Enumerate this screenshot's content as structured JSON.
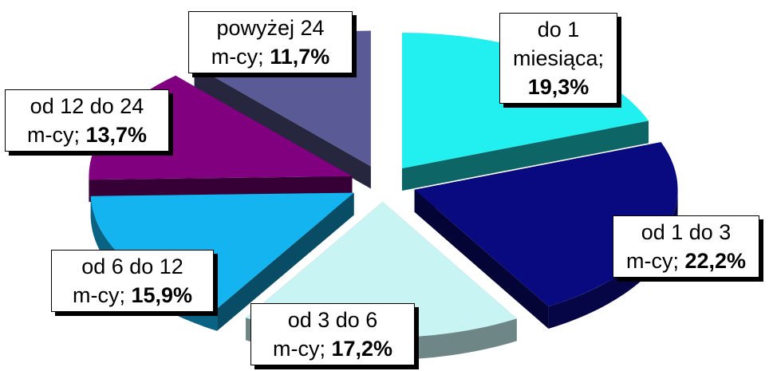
{
  "chart_data": {
    "type": "pie",
    "style": "exploded 3d pie",
    "categories": [
      "do 1 miesiąca",
      "od 1 do 3 m-cy",
      "od 3 do 6 m-cy",
      "od 6 do 12 m-cy",
      "od 12 do 24 m-cy",
      "powyżej 24 m-cy"
    ],
    "values": [
      19.3,
      22.2,
      17.2,
      15.9,
      13.7,
      11.7
    ],
    "unit": "%",
    "slices": [
      {
        "key": "s1",
        "lines": [
          "do 1",
          "miesiąca;"
        ],
        "value_text": "19,3%",
        "value": 19.3,
        "color": "#22f0f0"
      },
      {
        "key": "s2",
        "lines": [
          "od 1 do 3",
          "m-cy;"
        ],
        "value_text": "22,2%",
        "value": 22.2,
        "color": "#0a0a80"
      },
      {
        "key": "s3",
        "lines": [
          "od 3 do 6",
          "m-cy;"
        ],
        "value_text": "17,2%",
        "value": 17.2,
        "color": "#c8f4f4"
      },
      {
        "key": "s4",
        "lines": [
          "od 6 do 12",
          "m-cy;"
        ],
        "value_text": "15,9%",
        "value": 15.9,
        "color": "#14b4f0"
      },
      {
        "key": "s5",
        "lines": [
          "od 12 do 24",
          "m-cy;"
        ],
        "value_text": "13,7%",
        "value": 13.7,
        "color": "#800080"
      },
      {
        "key": "s6",
        "lines": [
          "powyżej 24",
          "m-cy;"
        ],
        "value_text": "11,7%",
        "value": 11.7,
        "color": "#5a5a96"
      }
    ]
  }
}
